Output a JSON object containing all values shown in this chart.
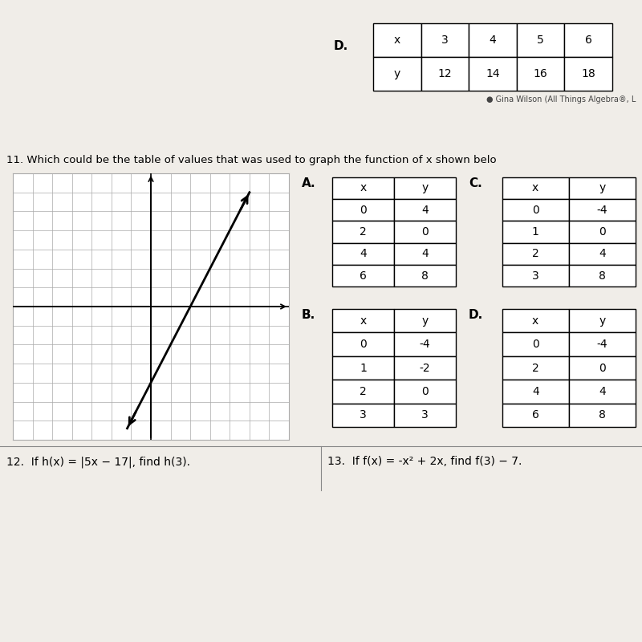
{
  "question_number": "11.",
  "question_text": "11. Which could be the table of values that was used to graph the function of x shown belo",
  "background_color": "#f0ede8",
  "table_A": {
    "label": "A.",
    "x": [
      0,
      2,
      4,
      6
    ],
    "y": [
      4,
      0,
      4,
      8
    ]
  },
  "table_B": {
    "label": "B.",
    "x": [
      0,
      1,
      2,
      3
    ],
    "y": [
      -4,
      -2,
      0,
      3
    ]
  },
  "table_C": {
    "label": "C.",
    "x": [
      0,
      1,
      2,
      3
    ],
    "y": [
      -4,
      0,
      4,
      8
    ]
  },
  "table_D": {
    "label": "D.",
    "x": [
      0,
      2,
      4,
      6
    ],
    "y": [
      -4,
      0,
      4,
      8
    ]
  },
  "top_table_label": "D.",
  "top_table_x": [
    "x",
    "3",
    "4",
    "5",
    "6"
  ],
  "top_table_y": [
    "y",
    "12",
    "14",
    "16",
    "18"
  ],
  "copyright_text": "● Gina Wilson (All Things Algebra®, L",
  "footer_question12": "12.  If h(x) = |5x − 17|, find h(3).",
  "footer_question13": "13.  If f(x) = -x² + 2x, find f(3) − 7.",
  "grid_color": "#aaaaaa",
  "table_border_color": "#000000",
  "text_color": "#000000",
  "dark_bar_color": "#1a1a1a"
}
